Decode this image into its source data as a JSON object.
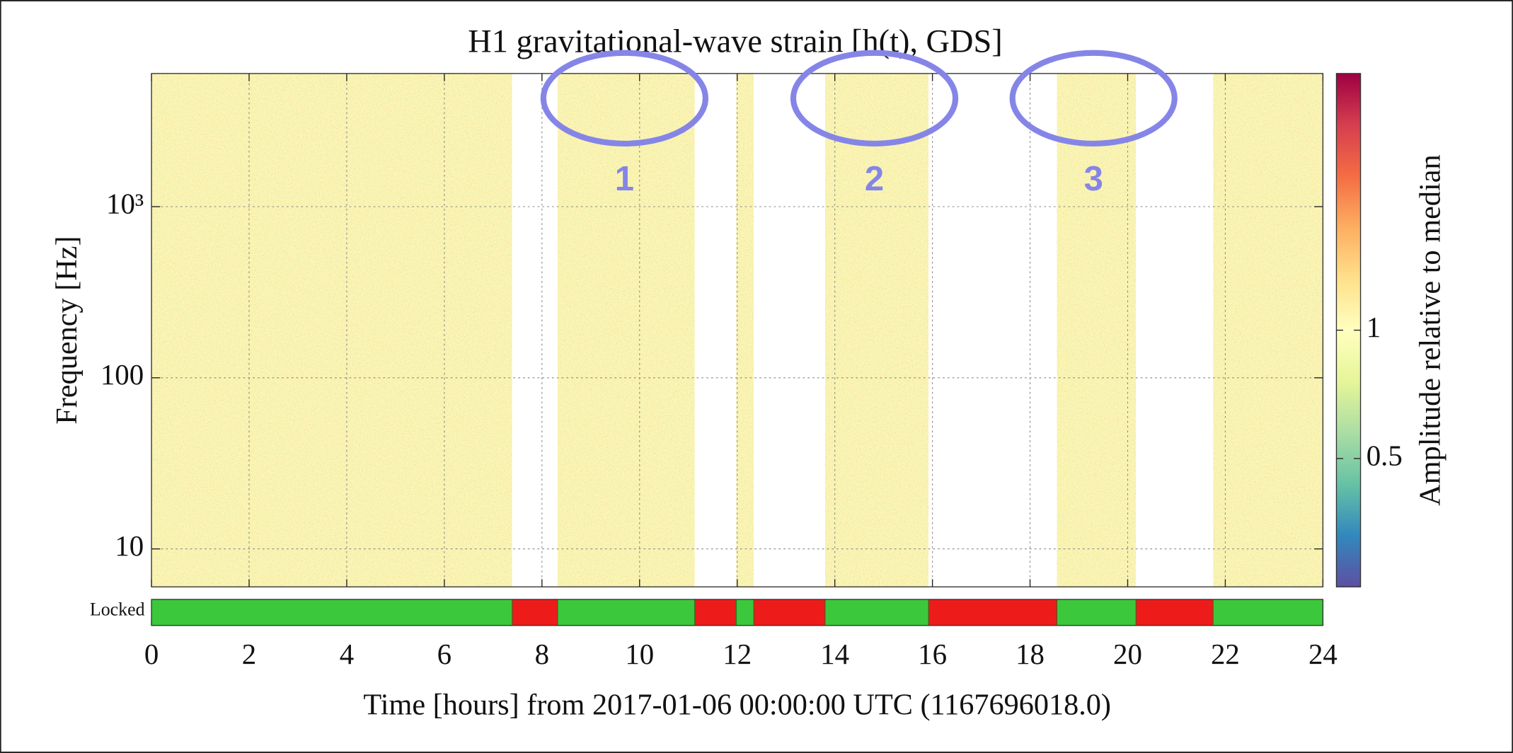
{
  "chart_data": {
    "type": "spectrogram",
    "title": "H1 gravitational-wave strain [h(t), GDS]",
    "xlabel": "Time [hours] from 2017-01-06 00:00:00 UTC (1167696018.0)",
    "ylabel": "Frequency [Hz]",
    "xlim": [
      0,
      24
    ],
    "xticks": [
      0,
      2,
      4,
      6,
      8,
      10,
      12,
      14,
      16,
      18,
      20,
      22,
      24
    ],
    "ylim": [
      6,
      6000
    ],
    "yscale": "log",
    "yticks": [
      10,
      100,
      {
        "value": 1000,
        "label": "10³"
      }
    ],
    "grid": true,
    "colorbar": {
      "label": "Amplitude relative to median",
      "clim": [
        0.25,
        4
      ],
      "scale": "log",
      "ticks": [
        0.5,
        1
      ],
      "colormap": "Spectral_r"
    },
    "segments": {
      "label": "Locked",
      "on_color": "#3cc83c",
      "off_color": "#ee1b1b",
      "on": [
        [
          0,
          7.39
        ],
        [
          8.32,
          11.13
        ],
        [
          11.98,
          12.34
        ],
        [
          13.8,
          15.92
        ],
        [
          18.55,
          20.17
        ],
        [
          21.75,
          24
        ]
      ],
      "off": [
        [
          7.39,
          8.32
        ],
        [
          11.13,
          11.98
        ],
        [
          12.34,
          13.8
        ],
        [
          15.92,
          18.55
        ],
        [
          20.17,
          21.75
        ]
      ]
    },
    "annotations": [
      {
        "label": "1",
        "x": 9.69,
        "y": 4300
      },
      {
        "label": "2",
        "x": 14.81,
        "y": 4300
      },
      {
        "label": "3",
        "x": 19.3,
        "y": 4300
      }
    ],
    "annotation_color": "#8585e8"
  }
}
